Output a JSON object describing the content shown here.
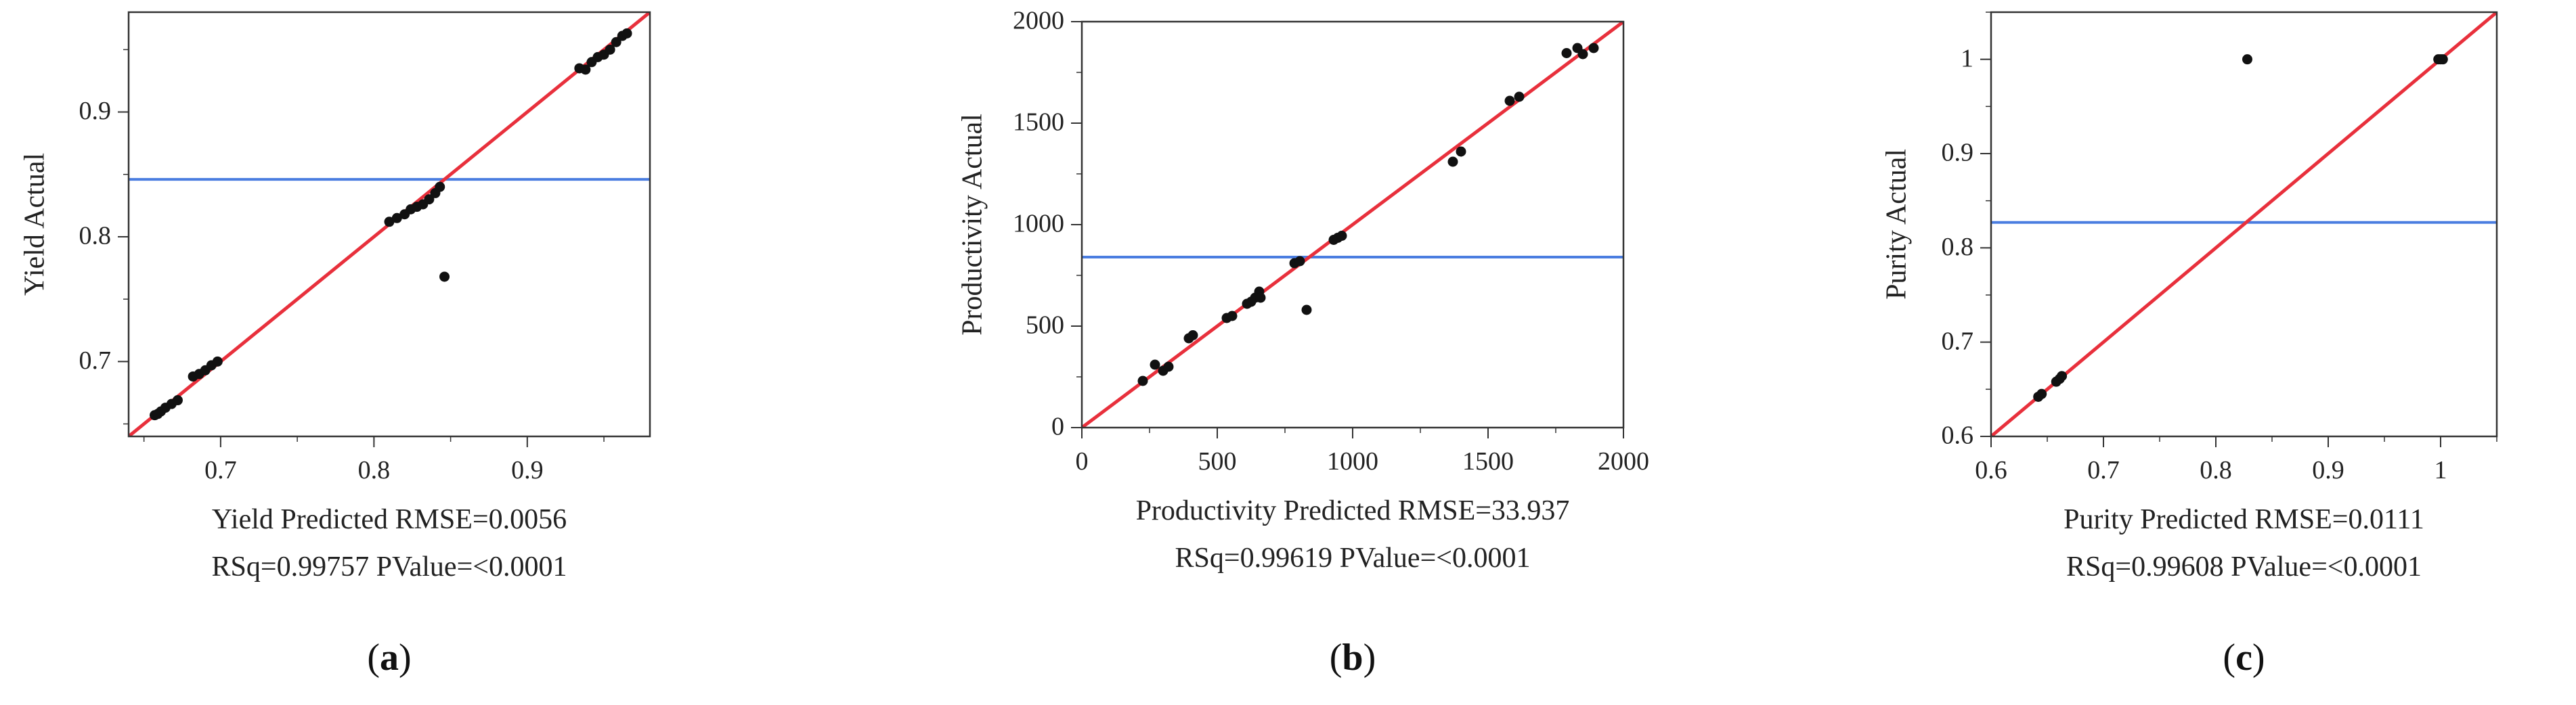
{
  "chart_data": [
    {
      "type": "scatter",
      "panel": "a",
      "caption": "a",
      "xlabel_line1": "Yield Predicted RMSE=0.0056",
      "xlabel_line2": "RSq=0.99757 PValue=<0.0001",
      "ylabel": "Yield Actual",
      "xlim": [
        0.64,
        0.98
      ],
      "ylim": [
        0.64,
        0.98
      ],
      "xticks": [
        0.7,
        0.8,
        0.9
      ],
      "xtick_labels": [
        "0.7",
        "0.8",
        "0.9"
      ],
      "yticks": [
        0.7,
        0.8,
        0.9
      ],
      "ytick_labels": [
        "0.7",
        "0.8",
        "0.9"
      ],
      "minor_step": 0.05,
      "mean_line_y": 0.846,
      "fit_line": [
        [
          0.64,
          0.64
        ],
        [
          0.98,
          0.98
        ]
      ],
      "points": [
        [
          0.657,
          0.657
        ],
        [
          0.659,
          0.658
        ],
        [
          0.661,
          0.66
        ],
        [
          0.664,
          0.663
        ],
        [
          0.668,
          0.666
        ],
        [
          0.672,
          0.669
        ],
        [
          0.682,
          0.688
        ],
        [
          0.686,
          0.69
        ],
        [
          0.69,
          0.693
        ],
        [
          0.694,
          0.697
        ],
        [
          0.698,
          0.7
        ],
        [
          0.81,
          0.812
        ],
        [
          0.815,
          0.815
        ],
        [
          0.82,
          0.818
        ],
        [
          0.824,
          0.822
        ],
        [
          0.828,
          0.824
        ],
        [
          0.832,
          0.826
        ],
        [
          0.836,
          0.83
        ],
        [
          0.84,
          0.835
        ],
        [
          0.843,
          0.84
        ],
        [
          0.846,
          0.768
        ],
        [
          0.934,
          0.935
        ],
        [
          0.938,
          0.934
        ],
        [
          0.942,
          0.94
        ],
        [
          0.946,
          0.944
        ],
        [
          0.95,
          0.946
        ],
        [
          0.954,
          0.95
        ],
        [
          0.958,
          0.956
        ],
        [
          0.962,
          0.961
        ],
        [
          0.965,
          0.963
        ]
      ]
    },
    {
      "type": "scatter",
      "panel": "b",
      "caption": "b",
      "xlabel_line1": "Productivity Predicted RMSE=33.937",
      "xlabel_line2": "RSq=0.99619 PValue=<0.0001",
      "ylabel": "Productivity Actual",
      "xlim": [
        0,
        2000
      ],
      "ylim": [
        0,
        2000
      ],
      "xticks": [
        0,
        500,
        1000,
        1500,
        2000
      ],
      "xtick_labels": [
        "0",
        "500",
        "1000",
        "1500",
        "2000"
      ],
      "yticks": [
        0,
        500,
        1000,
        1500,
        2000
      ],
      "ytick_labels": [
        "0",
        "500",
        "1000",
        "1500",
        "2000"
      ],
      "minor_step": 250,
      "mean_line_y": 840,
      "fit_line": [
        [
          0,
          0
        ],
        [
          2000,
          2000
        ]
      ],
      "points": [
        [
          225,
          230
        ],
        [
          270,
          310
        ],
        [
          300,
          280
        ],
        [
          320,
          300
        ],
        [
          395,
          440
        ],
        [
          410,
          455
        ],
        [
          535,
          540
        ],
        [
          555,
          550
        ],
        [
          610,
          610
        ],
        [
          625,
          620
        ],
        [
          640,
          640
        ],
        [
          655,
          670
        ],
        [
          660,
          640
        ],
        [
          785,
          810
        ],
        [
          805,
          820
        ],
        [
          830,
          580
        ],
        [
          930,
          925
        ],
        [
          945,
          935
        ],
        [
          960,
          945
        ],
        [
          1370,
          1310
        ],
        [
          1400,
          1360
        ],
        [
          1580,
          1610
        ],
        [
          1615,
          1630
        ],
        [
          1790,
          1845
        ],
        [
          1830,
          1870
        ],
        [
          1850,
          1840
        ],
        [
          1890,
          1870
        ]
      ]
    },
    {
      "type": "scatter",
      "panel": "c",
      "caption": "c",
      "xlabel_line1": "Purity Predicted RMSE=0.0111",
      "xlabel_line2": "RSq=0.99608 PValue=<0.0001",
      "ylabel": "Purity Actual",
      "xlim": [
        0.6,
        1.05
      ],
      "ylim": [
        0.6,
        1.05
      ],
      "xticks": [
        0.6,
        0.7,
        0.8,
        0.9,
        1
      ],
      "xtick_labels": [
        "0.6",
        "0.7",
        "0.8",
        "0.9",
        "1"
      ],
      "yticks": [
        0.6,
        0.7,
        0.8,
        0.9,
        1
      ],
      "ytick_labels": [
        "0.6",
        "0.7",
        "0.8",
        "0.9",
        "1"
      ],
      "minor_step": 0.05,
      "mean_line_y": 0.827,
      "fit_line": [
        [
          0.6,
          0.6
        ],
        [
          1.05,
          1.05
        ]
      ],
      "points": [
        [
          0.642,
          0.642
        ],
        [
          0.645,
          0.645
        ],
        [
          0.658,
          0.658
        ],
        [
          0.661,
          0.661
        ],
        [
          0.663,
          0.664
        ],
        [
          0.828,
          1.0
        ],
        [
          0.998,
          1.0
        ],
        [
          1.0,
          1.0
        ],
        [
          1.002,
          1.0
        ]
      ]
    }
  ]
}
